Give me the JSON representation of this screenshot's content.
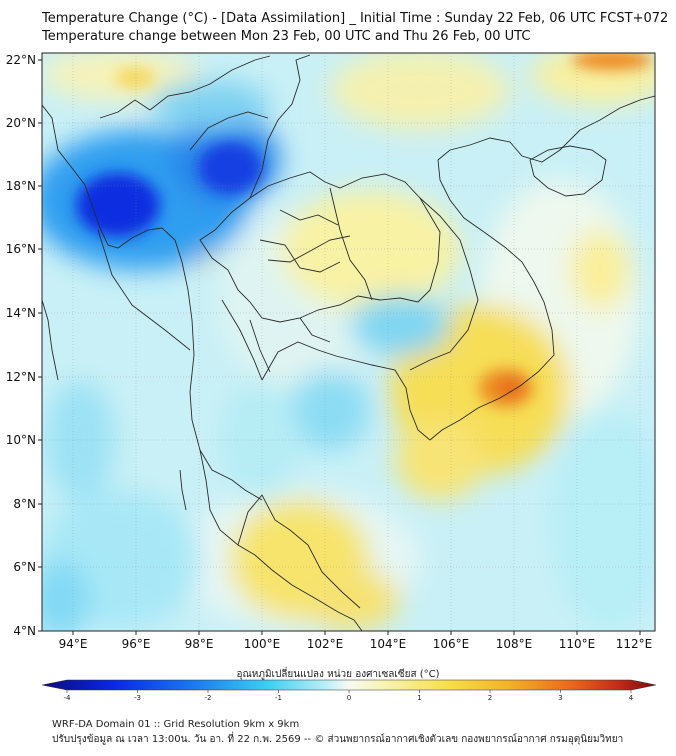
{
  "title": {
    "line1": "Temperature Change (°C) - [Data Assimilation] _ Initial Time : Sunday 22 Feb, 06 UTC FCST+072",
    "line2": "Temperature change between Mon 23 Feb, 00 UTC and Thu 26 Feb, 00 UTC"
  },
  "map": {
    "lat_labels": [
      "22°N",
      "20°N",
      "18°N",
      "16°N",
      "14°N",
      "12°N",
      "10°N",
      "8°N",
      "6°N",
      "4°N"
    ],
    "lon_labels": [
      "94°E",
      "96°E",
      "98°E",
      "100°E",
      "102°E",
      "104°E",
      "106°E",
      "108°E",
      "110°E",
      "112°E"
    ]
  },
  "colorbar": {
    "title": "อุณหภูมิเปลี่ยนแปลง หน่วย องศาเซลเซียส (°C)",
    "ticks": [
      "-4",
      "-3",
      "-2",
      "-1",
      "0",
      "1",
      "2",
      "3",
      "4"
    ]
  },
  "footer": {
    "line1": "WRF-DA Domain 01 :: Grid Resolution 9km x 9km",
    "line2": "ปรับปรุงข้อมูล ณ เวลา 13:00น. วัน อา. ที่ 22 ก.พ. 2569 -- © ส่วนพยากรณ์อากาศเชิงตัวเลข กองพยากรณ์อากาศ กรมอุตุนิยมวิทยา"
  },
  "colors": {
    "neg_strong": "#0a1fd6",
    "neg_mid": "#1a9cf0",
    "neg_light": "#9fe6f6",
    "neutral": "#f2f8f4",
    "pos_light": "#fbf4a0",
    "pos_mid": "#f6cf2c",
    "pos_strong": "#e8861c",
    "pos_max": "#8c1515"
  }
}
